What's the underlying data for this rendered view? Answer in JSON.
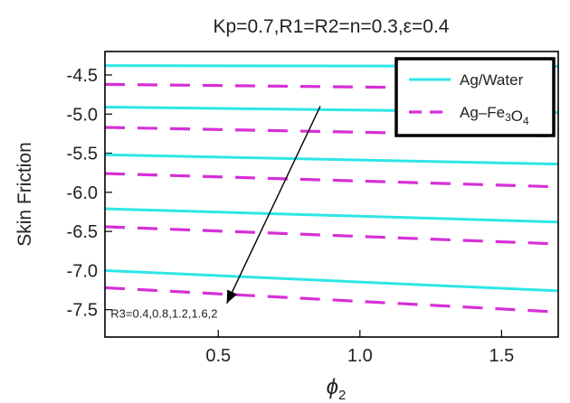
{
  "chart_data": {
    "type": "line",
    "title": "Kp=0.7,R1=R2=n=0.3,ε=0.4",
    "xlabel": "ϕ2",
    "ylabel": "Skin Friction",
    "xlim": [
      0.1,
      1.7
    ],
    "ylim": [
      -7.85,
      -4.2
    ],
    "xticks": [
      0.5,
      1.0,
      1.5
    ],
    "xtick_labels": [
      "0.5",
      "1.0",
      "1.5"
    ],
    "yticks": [
      -4.5,
      -5.0,
      -5.5,
      -6.0,
      -6.5,
      -7.0,
      -7.5
    ],
    "ytick_labels": [
      "-4.5",
      "-5.0",
      "-5.5",
      "-6.0",
      "-6.5",
      "-7.0",
      "-7.5"
    ],
    "grid": false,
    "legend_position": "top-right",
    "legend": [
      {
        "label": "Ag/Water",
        "style": "solid",
        "color": "#2ee6e6"
      },
      {
        "label": "Ag–Fe3O4",
        "style": "dashed",
        "color": "#d62fd6"
      }
    ],
    "series": [
      {
        "group": "Ag/Water",
        "param_R3": 0.4,
        "x": [
          0.1,
          1.7
        ],
        "y": [
          -4.38,
          -4.39
        ]
      },
      {
        "group": "Ag/Water",
        "param_R3": 0.8,
        "x": [
          0.1,
          1.7
        ],
        "y": [
          -4.91,
          -4.98
        ]
      },
      {
        "group": "Ag/Water",
        "param_R3": 1.2,
        "x": [
          0.1,
          1.7
        ],
        "y": [
          -5.52,
          -5.64
        ]
      },
      {
        "group": "Ag/Water",
        "param_R3": 1.6,
        "x": [
          0.1,
          1.7
        ],
        "y": [
          -6.21,
          -6.38
        ]
      },
      {
        "group": "Ag/Water",
        "param_R3": 2.0,
        "x": [
          0.1,
          1.7
        ],
        "y": [
          -7.0,
          -7.26
        ]
      },
      {
        "group": "Ag–Fe3O4",
        "param_R3": 0.4,
        "x": [
          0.1,
          1.7
        ],
        "y": [
          -4.62,
          -4.68
        ]
      },
      {
        "group": "Ag–Fe3O4",
        "param_R3": 0.8,
        "x": [
          0.1,
          1.7
        ],
        "y": [
          -5.17,
          -5.28
        ]
      },
      {
        "group": "Ag–Fe3O4",
        "param_R3": 1.2,
        "x": [
          0.1,
          1.7
        ],
        "y": [
          -5.76,
          -5.93
        ]
      },
      {
        "group": "Ag–Fe3O4",
        "param_R3": 1.6,
        "x": [
          0.1,
          1.7
        ],
        "y": [
          -6.44,
          -6.66
        ]
      },
      {
        "group": "Ag–Fe3O4",
        "param_R3": 2.0,
        "x": [
          0.1,
          1.7
        ],
        "y": [
          -7.22,
          -7.53
        ]
      }
    ],
    "annotation": {
      "text": "R3=0.4,0.8,1.2,1.6,2",
      "arrow_from": [
        0.86,
        -4.9
      ],
      "arrow_to": [
        0.53,
        -7.42
      ],
      "text_at": [
        0.12,
        -7.6
      ]
    },
    "colors": {
      "ag_water": "#2ee6e6",
      "ag_fe3o4": "#d62fd6",
      "axes": "#000000"
    }
  }
}
